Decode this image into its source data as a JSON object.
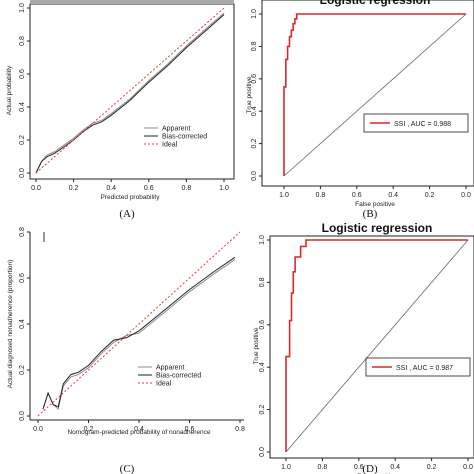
{
  "panels": {
    "A": "(A)",
    "B": "(B)",
    "C": "(C)",
    "D": "(D)"
  },
  "colors": {
    "apparent": "#8c8c8c",
    "bias": "#222222",
    "ideal": "#d94040",
    "roc": "#d62b2b",
    "axis": "#222222"
  },
  "chart_data": [
    {
      "id": "A",
      "type": "line",
      "xlabel": "Predicted probability",
      "ylabel": "Actual probability",
      "xlim": [
        0,
        1
      ],
      "ylim": [
        0,
        1
      ],
      "xticks": [
        "0.0",
        "0.2",
        "0.4",
        "0.6",
        "0.8",
        "1.0"
      ],
      "yticks": [
        "0.0",
        "0.2",
        "0.4",
        "0.6",
        "0.8",
        "1.0"
      ],
      "legend_position": "bottom-right",
      "series": [
        {
          "name": "Apparent",
          "style": "apparent",
          "x": [
            0.0,
            0.03,
            0.06,
            0.1,
            0.15,
            0.2,
            0.25,
            0.3,
            0.35,
            0.4,
            0.5,
            0.6,
            0.7,
            0.8,
            0.9,
            1.0
          ],
          "y": [
            0.0,
            0.07,
            0.11,
            0.13,
            0.17,
            0.21,
            0.26,
            0.3,
            0.32,
            0.36,
            0.45,
            0.56,
            0.66,
            0.77,
            0.87,
            0.97
          ]
        },
        {
          "name": "Bias-corrected",
          "style": "bias",
          "x": [
            0.0,
            0.03,
            0.06,
            0.1,
            0.15,
            0.2,
            0.25,
            0.3,
            0.35,
            0.4,
            0.5,
            0.6,
            0.7,
            0.8,
            0.9,
            1.0
          ],
          "y": [
            0.0,
            0.07,
            0.1,
            0.12,
            0.16,
            0.2,
            0.25,
            0.29,
            0.31,
            0.35,
            0.44,
            0.55,
            0.65,
            0.76,
            0.86,
            0.96
          ]
        },
        {
          "name": "Ideal",
          "style": "ideal",
          "x": [
            0,
            1
          ],
          "y": [
            0,
            1
          ]
        }
      ]
    },
    {
      "id": "B",
      "type": "line",
      "title": "Logistic regression",
      "xlabel": "False positive",
      "ylabel": "True positive",
      "xlim": [
        1.0,
        0.0
      ],
      "ylim": [
        0,
        1
      ],
      "xticks": [
        "1.0",
        "0.8",
        "0.6",
        "0.4",
        "0.2",
        "0.0"
      ],
      "yticks": [
        "0.0",
        "0.2",
        "0.4",
        "0.6",
        "0.8",
        "1.0"
      ],
      "legend_position": "middle-right",
      "series": [
        {
          "name": "SSI , AUC = 0.988",
          "style": "roc",
          "x": [
            1.0,
            1.0,
            0.99,
            0.99,
            0.98,
            0.98,
            0.97,
            0.97,
            0.96,
            0.96,
            0.95,
            0.95,
            0.94,
            0.94,
            0.93,
            0.93,
            0.0
          ],
          "y": [
            0.0,
            0.55,
            0.55,
            0.72,
            0.72,
            0.8,
            0.8,
            0.86,
            0.86,
            0.9,
            0.9,
            0.94,
            0.94,
            0.97,
            0.97,
            1.0,
            1.0
          ]
        },
        {
          "name": "",
          "style": "diag",
          "x": [
            1,
            0
          ],
          "y": [
            0,
            1
          ]
        }
      ]
    },
    {
      "id": "C",
      "type": "line",
      "xlabel": "Nomogram-predicted probability of nonadherence",
      "ylabel": "Actual diagnosed nonadherence (proportion)",
      "xlim": [
        0,
        0.8
      ],
      "ylim": [
        0,
        0.8
      ],
      "xticks": [
        "0.0",
        "0.2",
        "0.4",
        "0.6",
        "0.8"
      ],
      "yticks": [
        "0.0",
        "0.2",
        "0.4",
        "0.6",
        "0.8"
      ],
      "legend_position": "bottom-right",
      "series": [
        {
          "name": "Apparent",
          "style": "apparent",
          "x": [
            0.02,
            0.04,
            0.06,
            0.08,
            0.1,
            0.13,
            0.16,
            0.2,
            0.25,
            0.3,
            0.35,
            0.4,
            0.5,
            0.6,
            0.7,
            0.78
          ],
          "y": [
            0.03,
            0.1,
            0.05,
            0.03,
            0.13,
            0.17,
            0.18,
            0.21,
            0.27,
            0.32,
            0.35,
            0.36,
            0.45,
            0.54,
            0.62,
            0.68
          ]
        },
        {
          "name": "Bias-corrected",
          "style": "bias",
          "x": [
            0.02,
            0.04,
            0.06,
            0.08,
            0.1,
            0.13,
            0.16,
            0.2,
            0.25,
            0.3,
            0.35,
            0.4,
            0.5,
            0.6,
            0.7,
            0.78
          ],
          "y": [
            0.03,
            0.1,
            0.05,
            0.04,
            0.14,
            0.18,
            0.19,
            0.22,
            0.28,
            0.33,
            0.34,
            0.37,
            0.46,
            0.55,
            0.63,
            0.69
          ]
        },
        {
          "name": "Ideal",
          "style": "ideal",
          "x": [
            0,
            0.8
          ],
          "y": [
            0,
            0.8
          ]
        }
      ]
    },
    {
      "id": "D",
      "type": "line",
      "title": "Logistic regression",
      "xlabel": "False positive",
      "ylabel": "True positive",
      "xlim": [
        1.0,
        0.0
      ],
      "ylim": [
        0,
        1
      ],
      "xticks": [
        "1.0",
        "0.8",
        "0.6",
        "0.4",
        "0.2",
        "0.0"
      ],
      "yticks": [
        "0.0",
        "0.2",
        "0.4",
        "0.6",
        "0.8",
        "1.0"
      ],
      "legend_position": "middle-right",
      "series": [
        {
          "name": "SSI , AUC = 0.987",
          "style": "roc",
          "x": [
            1.0,
            1.0,
            0.98,
            0.98,
            0.97,
            0.97,
            0.96,
            0.96,
            0.95,
            0.95,
            0.92,
            0.92,
            0.89,
            0.89,
            0.0
          ],
          "y": [
            0.0,
            0.45,
            0.45,
            0.62,
            0.62,
            0.75,
            0.75,
            0.85,
            0.85,
            0.92,
            0.92,
            0.97,
            0.97,
            1.0,
            1.0
          ]
        },
        {
          "name": "",
          "style": "diag",
          "x": [
            1,
            0
          ],
          "y": [
            0,
            1
          ]
        }
      ]
    }
  ]
}
